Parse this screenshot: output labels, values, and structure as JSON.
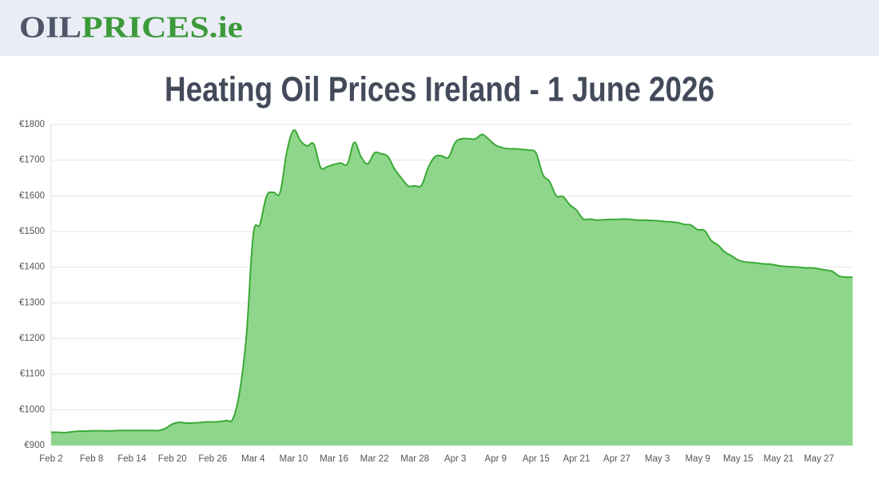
{
  "header": {
    "logo_part1": "OIL",
    "logo_part2": "PRICES.ie"
  },
  "chart_data": {
    "type": "area",
    "title": "Heating Oil Prices Ireland - 1 June 2026",
    "categories": [
      "Feb 2",
      null,
      null,
      null,
      null,
      null,
      "Feb 8",
      null,
      null,
      null,
      null,
      null,
      "Feb 14",
      null,
      null,
      null,
      null,
      null,
      "Feb 20",
      null,
      null,
      null,
      null,
      null,
      "Feb 26",
      null,
      null,
      null,
      null,
      null,
      "Mar 4",
      null,
      null,
      null,
      null,
      null,
      "Mar 10",
      null,
      null,
      null,
      null,
      null,
      "Mar 16",
      null,
      null,
      null,
      null,
      null,
      "Mar 22",
      null,
      null,
      null,
      null,
      null,
      "Mar 28",
      null,
      null,
      null,
      null,
      null,
      "Apr 3",
      null,
      null,
      null,
      null,
      null,
      "Apr 9",
      null,
      null,
      null,
      null,
      null,
      "Apr 15",
      null,
      null,
      null,
      null,
      null,
      "Apr 21",
      null,
      null,
      null,
      null,
      null,
      "Apr 27",
      null,
      null,
      null,
      null,
      null,
      "May 3",
      null,
      null,
      null,
      null,
      null,
      "May 9",
      null,
      null,
      null,
      null,
      null,
      "May 15",
      null,
      null,
      null,
      null,
      null,
      "May 21",
      null,
      null,
      null,
      null,
      null,
      "May 27",
      null,
      null,
      null,
      null,
      null
    ],
    "series": [
      {
        "color": "#3aaa35",
        "values": [
          937,
          937,
          936,
          938,
          940,
          940,
          941,
          941,
          941,
          941,
          942,
          942,
          942,
          942,
          942,
          942,
          942,
          948,
          960,
          965,
          963,
          963,
          964,
          966,
          966,
          967,
          970,
          975,
          1052,
          1209,
          1489,
          1520,
          1600,
          1610,
          1610,
          1724,
          1784,
          1755,
          1740,
          1745,
          1680,
          1682,
          1688,
          1692,
          1690,
          1750,
          1710,
          1690,
          1720,
          1718,
          1710,
          1675,
          1650,
          1628,
          1628,
          1630,
          1680,
          1710,
          1712,
          1708,
          1750,
          1760,
          1760,
          1760,
          1772,
          1758,
          1742,
          1735,
          1732,
          1732,
          1730,
          1728,
          1720,
          1660,
          1640,
          1600,
          1598,
          1575,
          1560,
          1535,
          1535,
          1532,
          1533,
          1534,
          1534,
          1535,
          1534,
          1532,
          1532,
          1531,
          1530,
          1528,
          1527,
          1525,
          1520,
          1518,
          1505,
          1503,
          1475,
          1462,
          1443,
          1432,
          1420,
          1415,
          1413,
          1411,
          1409,
          1408,
          1404,
          1402,
          1401,
          1400,
          1398,
          1398,
          1395,
          1392,
          1388,
          1375,
          1372,
          1372
        ]
      }
    ],
    "ylim": [
      900,
      1800
    ],
    "yticks": [
      {
        "value": 900,
        "label": "€900"
      },
      {
        "value": 1000,
        "label": "€1000"
      },
      {
        "value": 1100,
        "label": "€1100"
      },
      {
        "value": 1200,
        "label": "€1200"
      },
      {
        "value": 1300,
        "label": "€1300"
      },
      {
        "value": 1400,
        "label": "€1400"
      },
      {
        "value": 1500,
        "label": "€1500"
      },
      {
        "value": 1600,
        "label": "€1600"
      },
      {
        "value": 1700,
        "label": "€1700"
      },
      {
        "value": 1800,
        "label": "€1800"
      }
    ],
    "grid": true
  }
}
